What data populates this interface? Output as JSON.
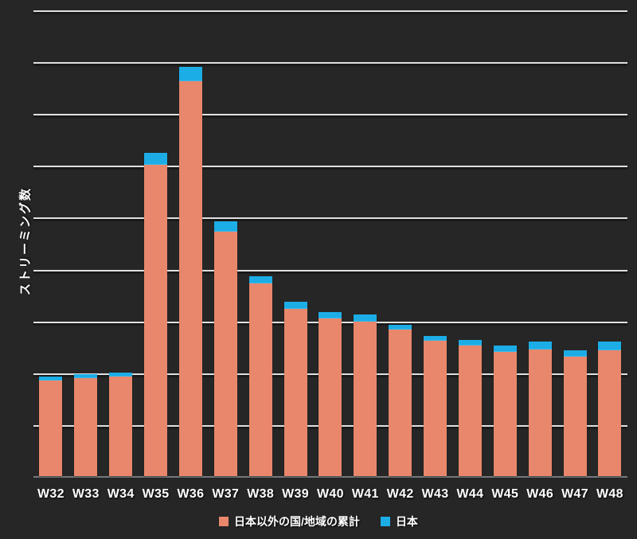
{
  "colors": {
    "background": "#262626",
    "gridline": "#e0e0e0",
    "axis_line": "#75797c",
    "text": "#ffffff",
    "series_other": "#E8876B",
    "series_japan": "#1CADE6"
  },
  "chart_data": {
    "type": "bar",
    "stacked": true,
    "title": "",
    "y_axis_label": "ストリーミング数",
    "xlabel": "",
    "categories": [
      "W32",
      "W33",
      "W34",
      "W35",
      "W36",
      "W37",
      "W38",
      "W39",
      "W40",
      "W41",
      "W42",
      "W43",
      "W44",
      "W45",
      "W46",
      "W47",
      "W48"
    ],
    "series": [
      {
        "name": "日本以外の国/地域の累計",
        "color": "#E8876B",
        "values": [
          1.84,
          1.89,
          1.92,
          6.01,
          7.62,
          4.72,
          3.72,
          3.22,
          3.04,
          2.98,
          2.82,
          2.61,
          2.52,
          2.39,
          2.45,
          2.3,
          2.42
        ]
      },
      {
        "name": "日本",
        "color": "#1CADE6",
        "values": [
          0.08,
          0.08,
          0.07,
          0.22,
          0.28,
          0.19,
          0.13,
          0.15,
          0.13,
          0.14,
          0.1,
          0.1,
          0.1,
          0.13,
          0.14,
          0.13,
          0.17
        ]
      }
    ],
    "ylim": [
      0,
      9
    ],
    "y_tick_labels_shown": false,
    "value_unit": "relative-gridline-intervals",
    "gridline_count": 9,
    "grid": "horizontal",
    "legend_position": "bottom"
  }
}
